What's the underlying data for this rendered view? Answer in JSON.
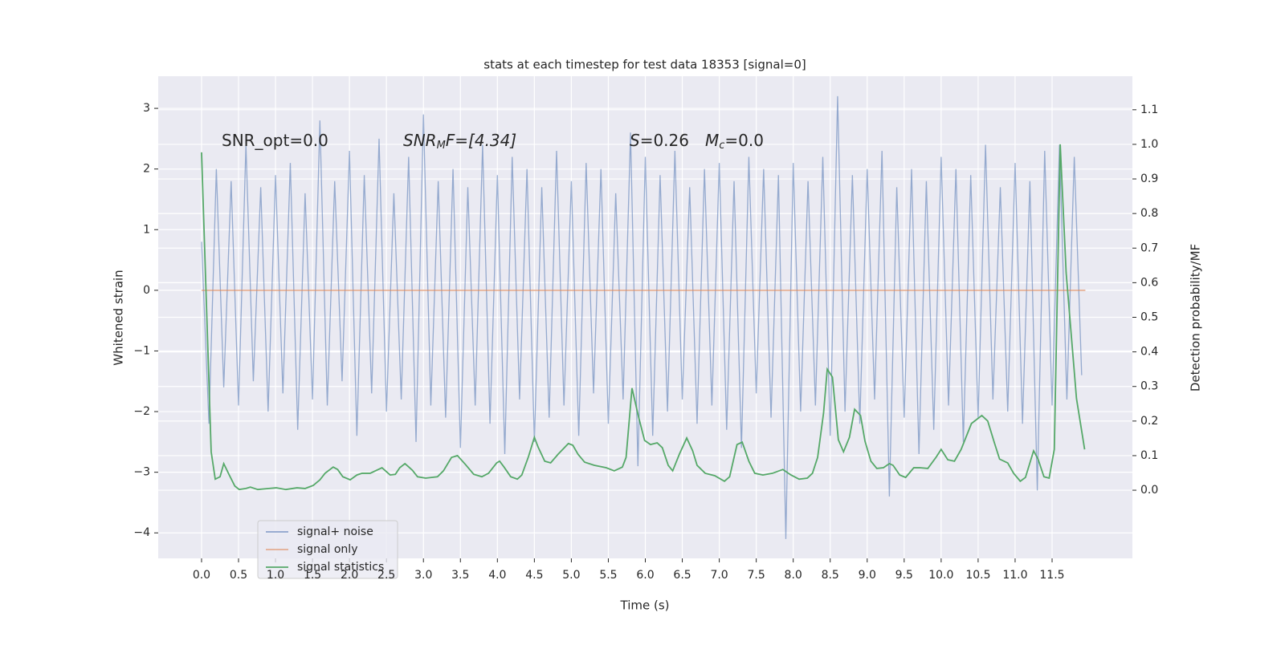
{
  "chart_data": {
    "type": "line",
    "title": "stats at each timestep for test data 18353 [signal=0]",
    "xlabel": "Time (s)",
    "ylabel": "Whitened strain",
    "y2label": "Detection probability/MF",
    "annotations": [
      [
        "SNR_opt=0.0"
      ],
      [
        "SNR",
        "M",
        "F=[4.34]"
      ],
      [
        "S",
        "=0.26"
      ],
      [
        "M",
        "c",
        "=0.0"
      ]
    ],
    "xlim": [
      -0.586,
      12.586
    ],
    "ylim": [
      -4.42,
      3.53
    ],
    "y2lim": [
      -0.197,
      1.197
    ],
    "xticks": [
      {
        "value": 0,
        "label": "0.0"
      },
      {
        "value": 0.5,
        "label": "0.5"
      },
      {
        "value": 1,
        "label": "1.0"
      },
      {
        "value": 1.5,
        "label": "1.5"
      },
      {
        "value": 2,
        "label": "2.0"
      },
      {
        "value": 2.5,
        "label": "2.5"
      },
      {
        "value": 3,
        "label": "3.0"
      },
      {
        "value": 3.5,
        "label": "3.5"
      },
      {
        "value": 4,
        "label": "4.0"
      },
      {
        "value": 4.5,
        "label": "4.5"
      },
      {
        "value": 5,
        "label": "5.0"
      },
      {
        "value": 5.5,
        "label": "5.5"
      },
      {
        "value": 6,
        "label": "6.0"
      },
      {
        "value": 6.5,
        "label": "6.5"
      },
      {
        "value": 7,
        "label": "7.0"
      },
      {
        "value": 7.5,
        "label": "7.5"
      },
      {
        "value": 8,
        "label": "8.0"
      },
      {
        "value": 8.5,
        "label": "8.5"
      },
      {
        "value": 9,
        "label": "9.0"
      },
      {
        "value": 9.5,
        "label": "9.5"
      },
      {
        "value": 10,
        "label": "10.0"
      },
      {
        "value": 10.5,
        "label": "10.5"
      },
      {
        "value": 11,
        "label": "11.0"
      },
      {
        "value": 11.5,
        "label": "11.5"
      }
    ],
    "yticks": [
      {
        "value": -4,
        "label": "−4"
      },
      {
        "value": -3,
        "label": "−3"
      },
      {
        "value": -2,
        "label": "−2"
      },
      {
        "value": -1,
        "label": "−1"
      },
      0,
      1,
      2,
      3
    ],
    "y2ticks": [
      {
        "value": 0,
        "label": "0.0"
      },
      {
        "value": 0.1,
        "label": "0.1"
      },
      {
        "value": 0.2,
        "label": "0.2"
      },
      {
        "value": 0.3,
        "label": "0.3"
      },
      {
        "value": 0.4,
        "label": "0.4"
      },
      {
        "value": 0.5,
        "label": "0.5"
      },
      {
        "value": 0.6,
        "label": "0.6"
      },
      {
        "value": 0.7,
        "label": "0.7"
      },
      {
        "value": 0.8,
        "label": "0.8"
      },
      {
        "value": 0.9,
        "label": "0.9"
      },
      {
        "value": 1,
        "label": "1.0"
      },
      {
        "value": 1.1,
        "label": "1.1"
      }
    ],
    "grid": true,
    "legend": "lower left",
    "series": [
      {
        "name": "signal+ noise",
        "color": "#4c72b0",
        "x": [
          0.0,
          0.1,
          0.2,
          0.3,
          0.4,
          0.5,
          0.6,
          0.7,
          0.8,
          0.9,
          1.0,
          1.1,
          1.2,
          1.3,
          1.4,
          1.5,
          1.6,
          1.7,
          1.8,
          1.9,
          2.0,
          2.1,
          2.2,
          2.3,
          2.4,
          2.5,
          2.6,
          2.7,
          2.8,
          2.9,
          3.0,
          3.1,
          3.2,
          3.3,
          3.4,
          3.5,
          3.6,
          3.7,
          3.8,
          3.9,
          4.0,
          4.1,
          4.2,
          4.3,
          4.4,
          4.5,
          4.6,
          4.7,
          4.8,
          4.9,
          5.0,
          5.1,
          5.2,
          5.3,
          5.4,
          5.5,
          5.6,
          5.7,
          5.8,
          5.9,
          6.0,
          6.1,
          6.2,
          6.3,
          6.4,
          6.5,
          6.6,
          6.7,
          6.8,
          6.9,
          7.0,
          7.1,
          7.2,
          7.3,
          7.4,
          7.5,
          7.6,
          7.7,
          7.8,
          7.9,
          8.0,
          8.1,
          8.2,
          8.3,
          8.4,
          8.5,
          8.6,
          8.7,
          8.8,
          8.9,
          9.0,
          9.1,
          9.2,
          9.3,
          9.4,
          9.5,
          9.6,
          9.7,
          9.8,
          9.9,
          10.0,
          10.1,
          10.2,
          10.3,
          10.4,
          10.5,
          10.6,
          10.7,
          10.8,
          10.9,
          11.0,
          11.1,
          11.2,
          11.3,
          11.4,
          11.5,
          11.6,
          11.7,
          11.8,
          11.9
        ],
        "values": [
          0.8,
          -2.2,
          2.0,
          -1.6,
          1.8,
          -1.9,
          2.4,
          -1.5,
          1.7,
          -2.0,
          1.9,
          -1.7,
          2.1,
          -2.3,
          1.6,
          -1.8,
          2.8,
          -1.9,
          1.8,
          -1.5,
          2.3,
          -2.4,
          1.9,
          -1.7,
          2.5,
          -2.0,
          1.6,
          -1.8,
          2.2,
          -2.5,
          2.9,
          -1.9,
          1.8,
          -2.1,
          2.0,
          -2.6,
          1.7,
          -1.9,
          2.4,
          -2.2,
          1.9,
          -2.7,
          2.2,
          -1.8,
          2.0,
          -2.5,
          1.7,
          -2.1,
          2.3,
          -1.9,
          1.8,
          -2.4,
          2.1,
          -1.7,
          2.0,
          -2.2,
          1.6,
          -1.8,
          2.6,
          -2.9,
          2.2,
          -2.4,
          1.9,
          -2.0,
          2.3,
          -1.8,
          1.7,
          -2.2,
          2.0,
          -1.9,
          2.1,
          -2.3,
          1.8,
          -2.6,
          2.2,
          -1.7,
          2.0,
          -2.1,
          1.9,
          -4.1,
          2.1,
          -2.0,
          1.8,
          -1.9,
          2.2,
          -2.4,
          3.2,
          -2.0,
          1.9,
          -2.2,
          2.0,
          -1.8,
          2.3,
          -3.4,
          1.7,
          -2.1,
          2.0,
          -2.7,
          1.8,
          -2.3,
          2.2,
          -1.9,
          2.0,
          -2.5,
          1.9,
          -2.1,
          2.4,
          -1.8,
          1.7,
          -2.0,
          2.1,
          -2.2,
          1.8,
          -3.3,
          2.3,
          -1.9,
          2.4,
          -1.8,
          2.2,
          -1.4
        ]
      },
      {
        "name": "signal only",
        "color": "#dd8452",
        "x": [
          0.0,
          11.95
        ],
        "values": [
          0,
          0
        ]
      },
      {
        "name": "signal statistics",
        "color": "#55a868",
        "axis": "y2",
        "x": [
          0.0,
          0.13,
          0.185,
          0.25,
          0.3,
          0.37,
          0.45,
          0.51,
          0.6,
          0.66,
          0.76,
          0.91,
          1.01,
          1.14,
          1.29,
          1.4,
          1.51,
          1.6,
          1.67,
          1.78,
          1.84,
          1.91,
          2.01,
          2.1,
          2.17,
          2.28,
          2.39,
          2.44,
          2.55,
          2.62,
          2.68,
          2.75,
          2.85,
          2.92,
          3.03,
          3.19,
          3.27,
          3.38,
          3.46,
          3.57,
          3.68,
          3.79,
          3.88,
          3.99,
          4.03,
          4.09,
          4.18,
          4.27,
          4.33,
          4.42,
          4.5,
          4.55,
          4.64,
          4.72,
          4.82,
          4.96,
          5.02,
          5.09,
          5.18,
          5.31,
          5.47,
          5.58,
          5.69,
          5.74,
          5.82,
          5.91,
          5.99,
          6.07,
          6.16,
          6.23,
          6.31,
          6.37,
          6.46,
          6.56,
          6.64,
          6.7,
          6.81,
          6.94,
          7.07,
          7.14,
          7.24,
          7.31,
          7.4,
          7.48,
          7.59,
          7.72,
          7.86,
          7.97,
          8.08,
          8.19,
          8.26,
          8.33,
          8.41,
          8.46,
          8.53,
          8.61,
          8.68,
          8.76,
          8.83,
          8.91,
          8.97,
          9.05,
          9.13,
          9.22,
          9.3,
          9.35,
          9.44,
          9.52,
          9.63,
          9.71,
          9.82,
          9.93,
          10.0,
          10.09,
          10.18,
          10.27,
          10.41,
          10.55,
          10.63,
          10.72,
          10.79,
          10.9,
          10.98,
          11.07,
          11.14,
          11.25,
          11.31,
          11.39,
          11.46,
          11.53,
          11.61,
          11.69,
          11.83,
          11.94
        ],
        "values": [
          0.977,
          0.111,
          0.032,
          0.039,
          0.077,
          0.046,
          0.012,
          0.002,
          0.005,
          0.009,
          0.002,
          0.005,
          0.007,
          0.002,
          0.007,
          0.005,
          0.014,
          0.03,
          0.049,
          0.067,
          0.06,
          0.039,
          0.03,
          0.044,
          0.049,
          0.049,
          0.06,
          0.065,
          0.044,
          0.046,
          0.065,
          0.077,
          0.058,
          0.039,
          0.035,
          0.039,
          0.056,
          0.095,
          0.1,
          0.074,
          0.046,
          0.039,
          0.049,
          0.079,
          0.084,
          0.067,
          0.039,
          0.032,
          0.044,
          0.097,
          0.153,
          0.125,
          0.084,
          0.079,
          0.104,
          0.135,
          0.13,
          0.104,
          0.081,
          0.072,
          0.065,
          0.056,
          0.067,
          0.095,
          0.295,
          0.211,
          0.144,
          0.132,
          0.137,
          0.123,
          0.072,
          0.056,
          0.104,
          0.151,
          0.114,
          0.072,
          0.049,
          0.042,
          0.026,
          0.039,
          0.132,
          0.139,
          0.084,
          0.049,
          0.044,
          0.049,
          0.06,
          0.044,
          0.032,
          0.035,
          0.049,
          0.095,
          0.223,
          0.35,
          0.327,
          0.146,
          0.111,
          0.153,
          0.234,
          0.216,
          0.142,
          0.084,
          0.063,
          0.065,
          0.077,
          0.072,
          0.044,
          0.037,
          0.065,
          0.065,
          0.063,
          0.095,
          0.118,
          0.088,
          0.084,
          0.118,
          0.193,
          0.216,
          0.2,
          0.137,
          0.09,
          0.079,
          0.049,
          0.026,
          0.037,
          0.114,
          0.09,
          0.039,
          0.035,
          0.118,
          1.0,
          0.629,
          0.265,
          0.118
        ]
      }
    ]
  }
}
